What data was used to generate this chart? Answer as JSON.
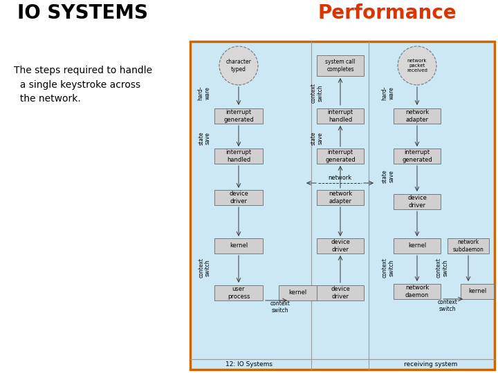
{
  "title_left": "IO SYSTEMS",
  "title_right": "Performance",
  "subtitle": "The steps required to handle\n  a single keystroke across\n  the network.",
  "bg_color": "#ffffff",
  "diagram_bg": "#cce8f4",
  "diagram_border": "#cc6600",
  "title_left_color": "#000000",
  "title_right_color": "#dd3300",
  "subtitle_color": "#000000",
  "box_fill": "#d0d0d0",
  "box_border": "#777777",
  "arrow_color": "#333333",
  "divider_color": "#999999",
  "text_color": "#000000"
}
